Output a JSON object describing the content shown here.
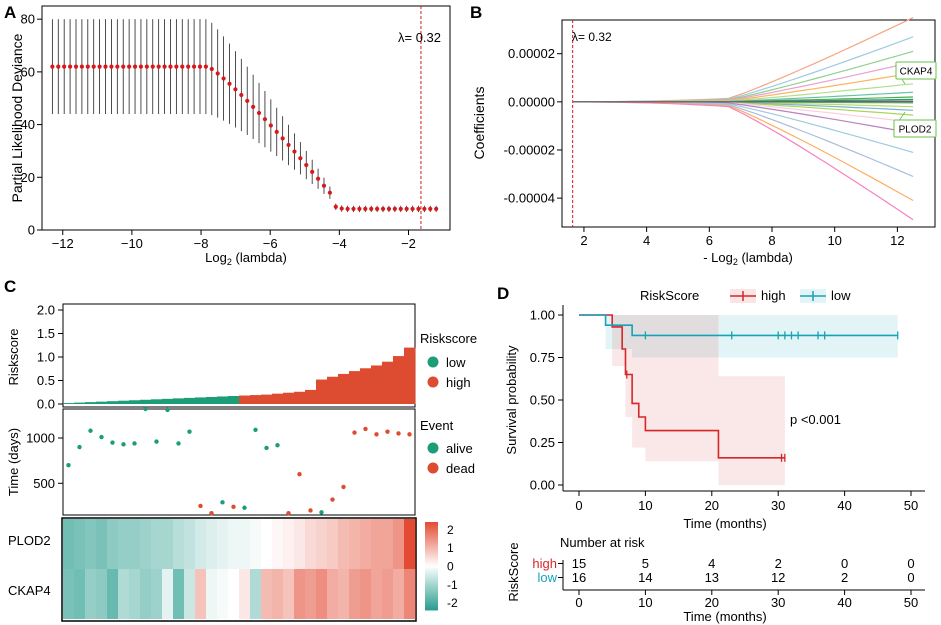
{
  "panel_labels": [
    "A",
    "B",
    "C",
    "D"
  ],
  "colors": {
    "lasso_point": "#d7191c",
    "low": "#1b9e77",
    "high": "#dd4b31",
    "km_high": "#d62728",
    "km_low": "#17a2b8",
    "heat_low": "#2a9d8f",
    "heat_mid": "#ffffff",
    "heat_high": "#e24a33"
  },
  "chart_data": [
    {
      "panel": "A",
      "type": "scatter",
      "title": "",
      "xlabel_prefix": "Log",
      "xlabel_sub": "2",
      "xlabel_suffix": " (lambda)",
      "ylabel": "Partial Likelihood Deviance",
      "xlim": [
        -12.6,
        -0.8
      ],
      "ylim": [
        0,
        85
      ],
      "xticks": [
        -12,
        -10,
        -8,
        -6,
        -4,
        -2
      ],
      "yticks": [
        0,
        20,
        40,
        60,
        80
      ],
      "lambda_label": "λ= 0.32",
      "lambda_line_x": -1.64,
      "series": [
        {
          "name": "cv_deviance",
          "x_range": [
            -12.3,
            -1.2
          ],
          "n_points": 66,
          "plateau": 62,
          "min": 8,
          "knee": -7.8,
          "floor": -4.2
        }
      ]
    },
    {
      "panel": "B",
      "type": "line",
      "xlabel_prefix": "- Log",
      "xlabel_sub": "2",
      "xlabel_suffix": " (lambda)",
      "ylabel": "Coefficients",
      "xlim": [
        1.3,
        13.2
      ],
      "ylim": [
        -5.2e-05,
        3.4e-05
      ],
      "xticks": [
        2,
        4,
        6,
        8,
        10,
        12
      ],
      "yticks": [
        2e-05,
        0.0,
        -2e-05,
        -4e-05
      ],
      "ytick_labels": [
        "0.00002",
        "0.00000",
        "-0.00002",
        "-0.00004"
      ],
      "lambda_label": "λ= 0.32",
      "lambda_line_x": 1.64,
      "annotations": [
        "CKAP4",
        "PLOD2"
      ],
      "series_end_values": [
        3.5e-05,
        2.7e-05,
        2.1e-05,
        1.65e-05,
        1.2e-05,
        7.5e-06,
        4e-06,
        2e-06,
        1e-06,
        3e-07,
        -5e-07,
        -2e-06,
        -3.5e-06,
        -5.5e-06,
        -8.5e-06,
        -1.3e-05,
        -2.1e-05,
        -3.1e-05,
        -4.1e-05,
        -4.9e-05
      ],
      "series_colors": [
        "#f4a582",
        "#9ecae1",
        "#8fd18f",
        "#e8a0d0",
        "#fdb462",
        "#b2df8a",
        "#66c2a5",
        "#4daf4a",
        "#1b9e77",
        "#666666",
        "#7fc97f",
        "#b3de69",
        "#80b1d3",
        "#a6d854",
        "#fccde5",
        "#bc80bd",
        "#9ecae1",
        "#a6bddb",
        "#fdae61",
        "#f781bf"
      ]
    },
    {
      "panel": "C-risk",
      "type": "bar",
      "ylabel": "Riskscore",
      "ylim": [
        0,
        2.0
      ],
      "yticks": [
        "2.0",
        "1.5",
        "1.0",
        "0.5",
        "0.0"
      ],
      "cutoff_index": 15,
      "values": [
        0.02,
        0.03,
        0.04,
        0.05,
        0.06,
        0.07,
        0.08,
        0.09,
        0.1,
        0.11,
        0.12,
        0.13,
        0.14,
        0.15,
        0.16,
        0.17,
        0.18,
        0.19,
        0.2,
        0.22,
        0.24,
        0.26,
        0.3,
        0.52,
        0.58,
        0.64,
        0.7,
        0.76,
        0.82,
        0.9,
        1.02,
        1.2
      ],
      "legend_title": "Riskscore",
      "legend": [
        "low",
        "high"
      ]
    },
    {
      "panel": "C-time",
      "type": "scatter",
      "ylabel": "Time (days)",
      "ylim": [
        150,
        1320
      ],
      "yticks": [
        "1000",
        "500"
      ],
      "legend_title": "Event",
      "legend": [
        "alive",
        "dead"
      ],
      "points": [
        {
          "t": 700,
          "e": "alive"
        },
        {
          "t": 900,
          "e": "alive"
        },
        {
          "t": 1080,
          "e": "alive"
        },
        {
          "t": 1010,
          "e": "alive"
        },
        {
          "t": 950,
          "e": "alive"
        },
        {
          "t": 930,
          "e": "alive"
        },
        {
          "t": 940,
          "e": "alive"
        },
        {
          "t": 1320,
          "e": "alive"
        },
        {
          "t": 960,
          "e": "alive"
        },
        {
          "t": 1310,
          "e": "alive"
        },
        {
          "t": 940,
          "e": "alive"
        },
        {
          "t": 1070,
          "e": "alive"
        },
        {
          "t": 250,
          "e": "dead"
        },
        {
          "t": 170,
          "e": "dead"
        },
        {
          "t": 290,
          "e": "alive"
        },
        {
          "t": 240,
          "e": "dead"
        },
        {
          "t": 230,
          "e": "alive"
        },
        {
          "t": 1090,
          "e": "alive"
        },
        {
          "t": 890,
          "e": "alive"
        },
        {
          "t": 920,
          "e": "alive"
        },
        {
          "t": 170,
          "e": "dead"
        },
        {
          "t": 600,
          "e": "dead"
        },
        {
          "t": 200,
          "e": "dead"
        },
        {
          "t": 180,
          "e": "alive"
        },
        {
          "t": 320,
          "e": "dead"
        },
        {
          "t": 460,
          "e": "dead"
        },
        {
          "t": 1060,
          "e": "dead"
        },
        {
          "t": 1100,
          "e": "dead"
        },
        {
          "t": 1040,
          "e": "dead"
        },
        {
          "t": 1070,
          "e": "dead"
        },
        {
          "t": 1050,
          "e": "dead"
        },
        {
          "t": 1040,
          "e": "dead"
        }
      ]
    },
    {
      "panel": "C-heatmap",
      "type": "heatmap",
      "rows": [
        "PLOD2",
        "CKAP4"
      ],
      "colorbar_ticks": [
        "2",
        "1",
        "0",
        "-1",
        "-2"
      ],
      "colorbar_range": [
        -2.4,
        2.4
      ],
      "values": [
        [
          -1.6,
          -1.5,
          -1.4,
          -1.5,
          -1.3,
          -1.2,
          -1.2,
          -1.1,
          -1.0,
          -1.0,
          -0.8,
          -0.7,
          -0.5,
          -0.4,
          -0.3,
          -0.2,
          -0.2,
          -0.1,
          0.0,
          0.1,
          0.2,
          0.3,
          0.5,
          0.6,
          0.7,
          0.9,
          1.0,
          1.1,
          1.2,
          1.2,
          1.4,
          2.4
        ],
        [
          -1.5,
          -1.6,
          -1.2,
          -1.3,
          -1.7,
          -0.9,
          -1.0,
          -1.2,
          -1.1,
          -0.3,
          -1.6,
          -0.6,
          0.8,
          -0.2,
          -0.1,
          0.0,
          0.3,
          -0.9,
          0.9,
          1.0,
          0.8,
          1.4,
          1.3,
          1.5,
          1.1,
          1.0,
          1.3,
          1.4,
          1.2,
          1.3,
          1.1,
          1.6
        ]
      ]
    },
    {
      "panel": "D",
      "type": "line",
      "legend_title": "RiskScore",
      "legend": [
        "high",
        "low"
      ],
      "xlabel": "Time (months)",
      "ylabel": "Survival probability",
      "xlim": [
        -2,
        52
      ],
      "ylim": [
        0,
        1.05
      ],
      "xticks": [
        0,
        10,
        20,
        30,
        40,
        50
      ],
      "yticks": [
        "1.00",
        "0.75",
        "0.50",
        "0.25",
        "0.00"
      ],
      "pvalue": "p <0.001",
      "series": [
        {
          "name": "high",
          "steps": [
            [
              0,
              1.0
            ],
            [
              5,
              0.93
            ],
            [
              6.5,
              0.8
            ],
            [
              7,
              0.65
            ],
            [
              8,
              0.48
            ],
            [
              9,
              0.4
            ],
            [
              10,
              0.32
            ],
            [
              21,
              0.16
            ],
            [
              31,
              0.16
            ]
          ],
          "censor": [
            7.2,
            30.5,
            31
          ]
        },
        {
          "name": "low",
          "steps": [
            [
              0,
              1.0
            ],
            [
              4,
              0.94
            ],
            [
              8,
              0.88
            ],
            [
              48,
              0.88
            ]
          ],
          "censor": [
            10,
            23,
            30,
            31,
            32,
            33,
            36,
            37,
            48
          ]
        }
      ],
      "risk_table": {
        "title": "Number at risk",
        "ylabel": "RiskScore",
        "rows": [
          {
            "name": "high",
            "counts": [
              "15",
              "5",
              "4",
              "2",
              "0",
              "0"
            ]
          },
          {
            "name": "low",
            "counts": [
              "16",
              "14",
              "13",
              "12",
              "2",
              "0"
            ]
          }
        ],
        "xticks": [
          0,
          10,
          20,
          30,
          40,
          50
        ],
        "xlabel": "Time (months)"
      }
    }
  ]
}
